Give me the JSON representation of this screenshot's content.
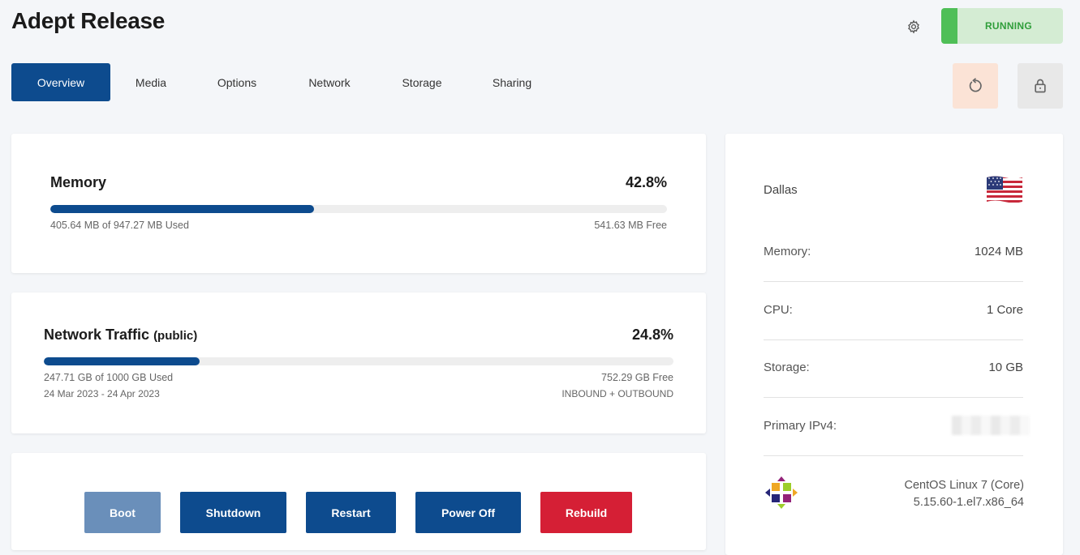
{
  "header": {
    "title": "Adept Release",
    "settings_icon": "gear-icon",
    "status": "RUNNING",
    "status_color": "#4fbf57"
  },
  "tabs": [
    {
      "label": "Overview",
      "active": true
    },
    {
      "label": "Media",
      "active": false
    },
    {
      "label": "Options",
      "active": false
    },
    {
      "label": "Network",
      "active": false
    },
    {
      "label": "Storage",
      "active": false
    },
    {
      "label": "Sharing",
      "active": false
    }
  ],
  "icon_buttons": {
    "reboot_icon": "reboot-icon",
    "lock_icon": "lock-icon"
  },
  "memory": {
    "label": "Memory",
    "percent": "42.8%",
    "fraction": 0.428,
    "used": "405.64 MB of 947.27 MB Used",
    "free": "541.63 MB Free"
  },
  "network": {
    "label": "Network Traffic",
    "sublabel": "(public)",
    "percent": "24.8%",
    "fraction": 0.248,
    "used": "247.71 GB of 1000 GB Used",
    "period": "24 Mar 2023 - 24 Apr 2023",
    "free": "752.29 GB Free",
    "direction": "INBOUND + OUTBOUND"
  },
  "actions": [
    {
      "label": "Boot",
      "color": "#6a8fba"
    },
    {
      "label": "Shutdown",
      "color": "#0d4b8e"
    },
    {
      "label": "Restart",
      "color": "#0d4b8e"
    },
    {
      "label": "Power Off",
      "color": "#0d4b8e"
    },
    {
      "label": "Rebuild",
      "color": "#d51f35"
    }
  ],
  "server": {
    "location": "Dallas",
    "flag_icon": "us-flag-icon",
    "specs": [
      {
        "key": "Memory:",
        "value": "1024 MB"
      },
      {
        "key": "CPU:",
        "value": "1 Core"
      },
      {
        "key": "Storage:",
        "value": "10 GB"
      },
      {
        "key": "Primary IPv4:",
        "value": ""
      }
    ],
    "os_name": "CentOS Linux 7 (Core)",
    "os_kernel": "5.15.60-1.el7.x86_64",
    "os_icon": "centos-logo-icon"
  }
}
